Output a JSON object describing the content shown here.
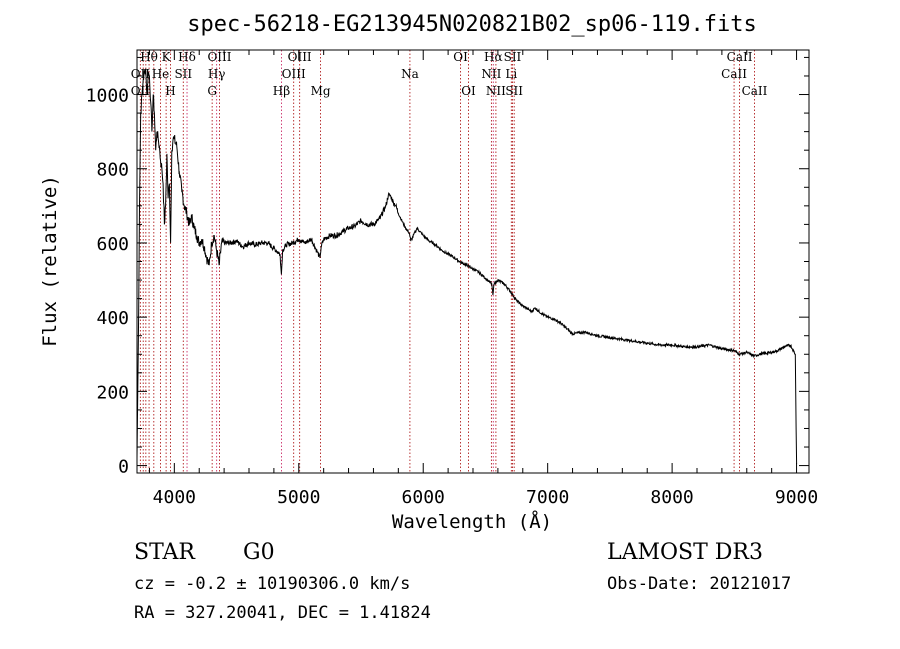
{
  "chart_data": {
    "type": "line",
    "title": "spec-56218-EG213945N020821B02_sp06-119.fits",
    "xlabel": "Wavelength (Å)",
    "ylabel": "Flux (relative)",
    "xlim": [
      3700,
      9100
    ],
    "ylim": [
      -20,
      1120
    ],
    "x_ticks": [
      4000,
      5000,
      6000,
      7000,
      8000,
      9000
    ],
    "y_ticks": [
      0,
      200,
      400,
      600,
      800,
      1000
    ],
    "x_tick_labels": [
      "4000",
      "5000",
      "6000",
      "7000",
      "8000",
      "9000"
    ],
    "y_tick_labels": [
      "0",
      "200",
      "400",
      "600",
      "800",
      "1000"
    ],
    "grid": false,
    "series": [
      {
        "name": "flux",
        "x": [
          3700,
          3710,
          3720,
          3730,
          3740,
          3750,
          3760,
          3770,
          3780,
          3790,
          3800,
          3810,
          3820,
          3830,
          3840,
          3850,
          3860,
          3870,
          3880,
          3890,
          3900,
          3910,
          3920,
          3930,
          3940,
          3950,
          3960,
          3970,
          3980,
          3990,
          4000,
          4020,
          4040,
          4060,
          4080,
          4100,
          4120,
          4140,
          4160,
          4180,
          4200,
          4220,
          4240,
          4260,
          4280,
          4300,
          4320,
          4340,
          4360,
          4380,
          4400,
          4450,
          4500,
          4550,
          4600,
          4650,
          4700,
          4750,
          4800,
          4850,
          4860,
          4870,
          4900,
          4950,
          5000,
          5050,
          5100,
          5150,
          5170,
          5180,
          5200,
          5250,
          5300,
          5350,
          5400,
          5450,
          5500,
          5550,
          5600,
          5650,
          5700,
          5720,
          5740,
          5760,
          5780,
          5800,
          5850,
          5890,
          5900,
          5950,
          6000,
          6050,
          6100,
          6150,
          6200,
          6250,
          6300,
          6350,
          6400,
          6450,
          6500,
          6550,
          6560,
          6570,
          6600,
          6650,
          6700,
          6750,
          6800,
          6850,
          6870,
          6900,
          6950,
          7000,
          7050,
          7100,
          7150,
          7200,
          7300,
          7400,
          7500,
          7600,
          7700,
          7800,
          7900,
          8000,
          8100,
          8200,
          8300,
          8400,
          8500,
          8540,
          8600,
          8660,
          8700,
          8800,
          8850,
          8900,
          8950,
          8990,
          9000
        ],
        "values": [
          20,
          300,
          700,
          950,
          1000,
          1040,
          1060,
          1070,
          1000,
          1060,
          1050,
          980,
          900,
          1000,
          950,
          850,
          900,
          880,
          860,
          820,
          800,
          760,
          650,
          700,
          840,
          720,
          760,
          600,
          850,
          880,
          880,
          860,
          790,
          740,
          700,
          680,
          650,
          670,
          640,
          620,
          600,
          610,
          590,
          560,
          540,
          600,
          620,
          580,
          540,
          600,
          600,
          600,
          605,
          590,
          600,
          595,
          600,
          600,
          585,
          570,
          515,
          580,
          595,
          600,
          610,
          600,
          610,
          575,
          560,
          590,
          610,
          620,
          620,
          630,
          640,
          645,
          660,
          650,
          650,
          665,
          700,
          730,
          725,
          710,
          700,
          680,
          645,
          625,
          605,
          640,
          620,
          605,
          595,
          580,
          570,
          560,
          548,
          540,
          530,
          520,
          505,
          490,
          460,
          490,
          500,
          490,
          470,
          445,
          430,
          420,
          415,
          425,
          410,
          400,
          395,
          385,
          370,
          355,
          360,
          350,
          345,
          340,
          335,
          330,
          325,
          325,
          320,
          320,
          325,
          315,
          310,
          300,
          305,
          295,
          300,
          305,
          310,
          320,
          325,
          300,
          5
        ]
      }
    ],
    "annotations": {
      "emission_lines": [
        {
          "label": "Hδ",
          "wavelength": 4102
        },
        {
          "label": "Hγ",
          "wavelength": 4340
        },
        {
          "label": "Hβ",
          "wavelength": 4861
        },
        {
          "label": "Hα",
          "wavelength": 6563
        }
      ],
      "line_labels": [
        {
          "text": "Hθ",
          "wavelength": 3797
        },
        {
          "text": "K",
          "wavelength": 3934
        },
        {
          "text": "Hδ",
          "wavelength": 4102
        },
        {
          "text": "OIII",
          "wavelength": 4363
        },
        {
          "text": "OIII",
          "wavelength": 5007
        },
        {
          "text": "OI",
          "wavelength": 6300
        },
        {
          "text": "Hα",
          "wavelength": 6563
        },
        {
          "text": "SII",
          "wavelength": 6717
        },
        {
          "text": "CaII",
          "wavelength": 8542
        },
        {
          "text": "OII",
          "wavelength": 3727
        },
        {
          "text": "He",
          "wavelength": 3889
        },
        {
          "text": "SII",
          "wavelength": 4072
        },
        {
          "text": "Hγ",
          "wavelength": 4340
        },
        {
          "text": "OIII",
          "wavelength": 4959
        },
        {
          "text": "Na",
          "wavelength": 5893
        },
        {
          "text": "NII",
          "wavelength": 6548
        },
        {
          "text": "Li",
          "wavelength": 6708
        },
        {
          "text": "CaII",
          "wavelength": 8498
        },
        {
          "text": "OII",
          "wavelength": 3727
        },
        {
          "text": "H",
          "wavelength": 3969
        },
        {
          "text": "G",
          "wavelength": 4304
        },
        {
          "text": "Hβ",
          "wavelength": 4861
        },
        {
          "text": "Mg",
          "wavelength": 5175
        },
        {
          "text": "OI",
          "wavelength": 6364
        },
        {
          "text": "NII",
          "wavelength": 6584
        },
        {
          "text": "SII",
          "wavelength": 6731
        },
        {
          "text": "CaII",
          "wavelength": 8662
        }
      ],
      "marker_wavelengths": [
        3727,
        3750,
        3771,
        3797,
        3835,
        3889,
        3934,
        3969,
        4072,
        4102,
        4304,
        4340,
        4363,
        4861,
        4959,
        5007,
        5175,
        5893,
        6300,
        6364,
        6548,
        6563,
        6584,
        6708,
        6717,
        6731,
        8498,
        8542,
        8662
      ]
    }
  },
  "info": {
    "class_label": "STAR",
    "subclass": "G0",
    "survey": "LAMOST DR3",
    "velocity": "cz = -0.2 ± 10190306.0 km/s",
    "obs_date": "Obs-Date: 20121017",
    "coords": "RA = 327.20041, DEC =    1.41824"
  }
}
